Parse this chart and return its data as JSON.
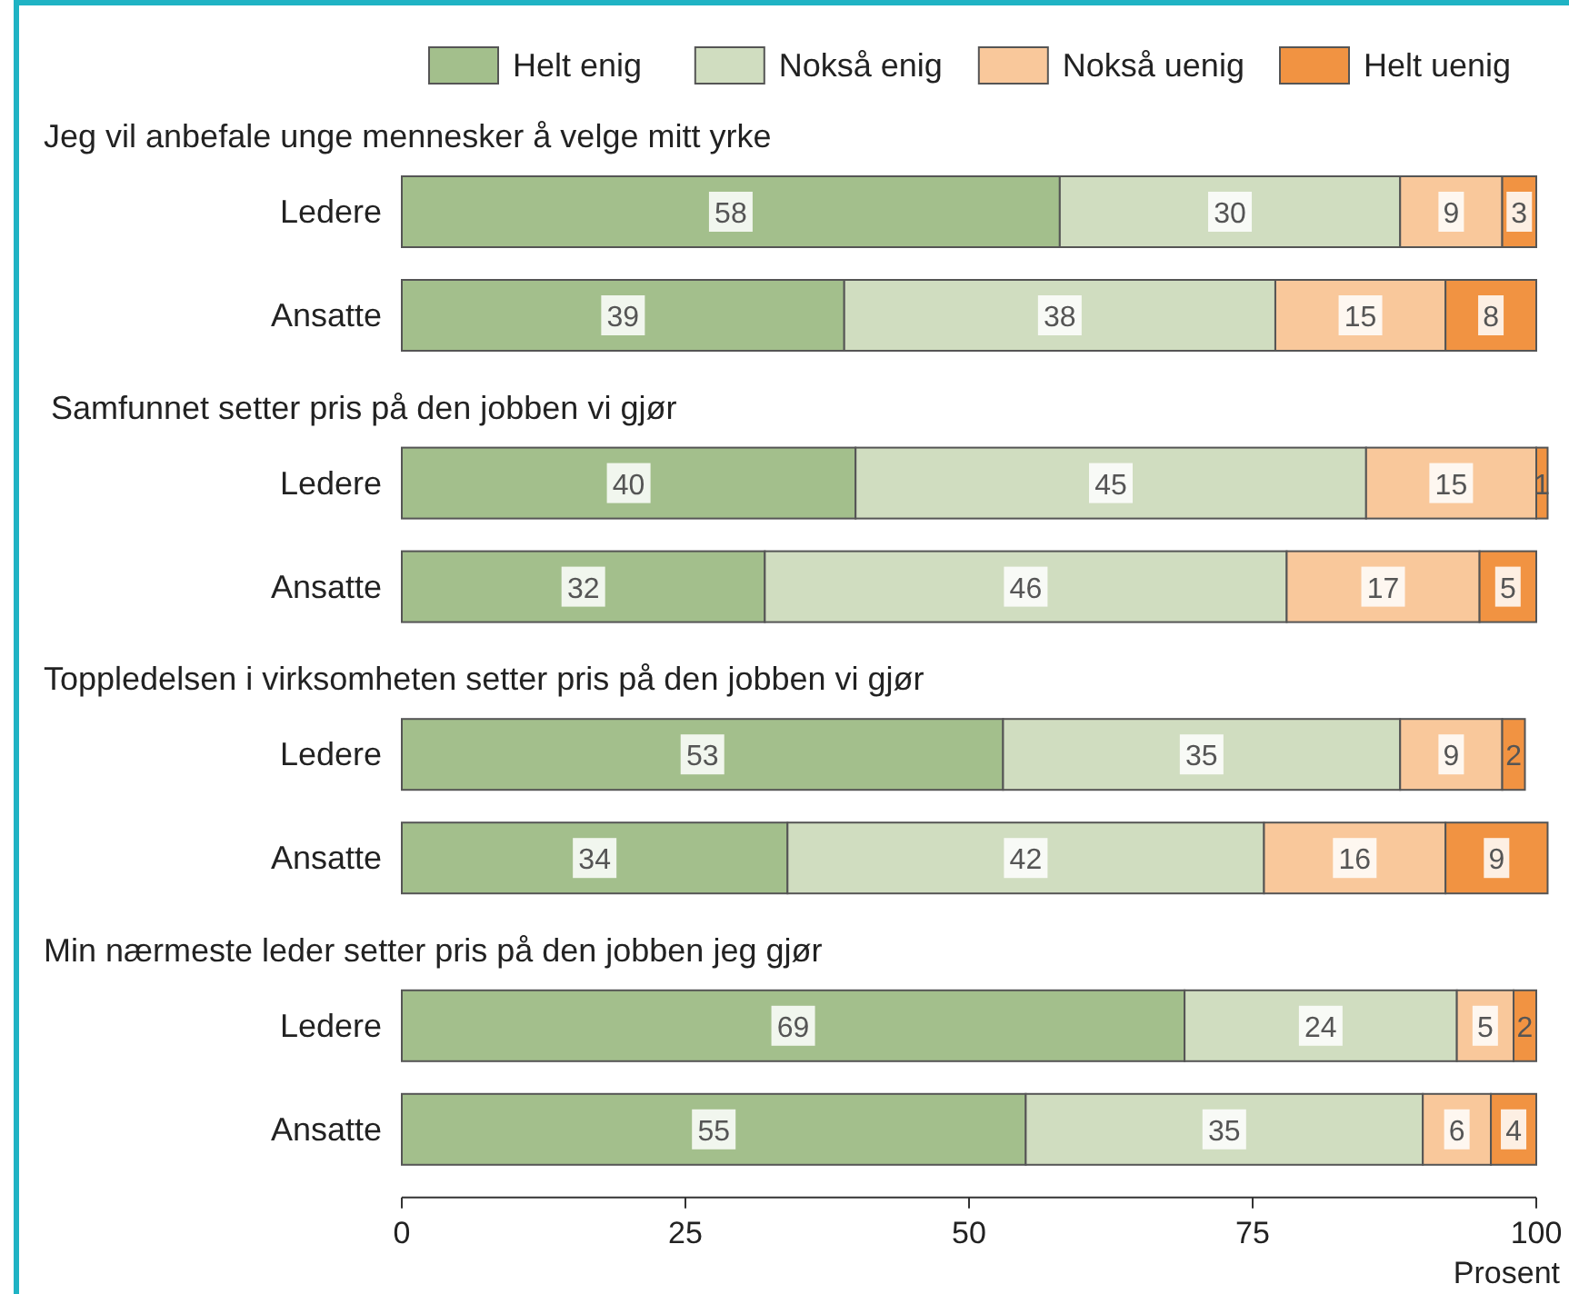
{
  "chart_data": [
    {
      "type": "bar",
      "orientation": "horizontal",
      "stacked": true,
      "title": "Jeg vil anbefale unge mennesker å velge mitt yrke",
      "categories": [
        "Ledere",
        "Ansatte"
      ],
      "tick_labels": "y",
      "data_labels": true,
      "legend": "top right",
      "series": [
        {
          "name": "Helt enig",
          "color": "#a3bf8c",
          "values": [
            58,
            39
          ]
        },
        {
          "name": "Nokså enig",
          "color": "#d0ddc0",
          "values": [
            30,
            38
          ]
        },
        {
          "name": "Nokså uenig",
          "color": "#f9c89b",
          "values": [
            9,
            15
          ]
        },
        {
          "name": "Helt uenig",
          "color": "#f19342",
          "values": [
            3,
            8
          ]
        }
      ]
    },
    {
      "type": "bar",
      "orientation": "horizontal",
      "stacked": true,
      "title": "Samfunnet setter pris på den jobben vi gjør",
      "categories": [
        "Ledere",
        "Ansatte"
      ],
      "tick_labels": "y",
      "data_labels": true,
      "series": [
        {
          "color": "#a3bf8c",
          "values": [
            40,
            32
          ]
        },
        {
          "color": "#d0ddc0",
          "values": [
            45,
            46
          ]
        },
        {
          "color": "#f9c89b",
          "values": [
            15,
            17
          ]
        },
        {
          "color": "#f19342",
          "values": [
            1,
            5
          ]
        }
      ]
    },
    {
      "type": "bar",
      "orientation": "horizontal",
      "stacked": true,
      "title": "Toppledelsen i virksomheten setter pris på den jobben vi gjør",
      "categories": [
        "Ledere",
        "Ansatte"
      ],
      "tick_labels": "y",
      "data_labels": true,
      "series": [
        {
          "color": "#a3bf8c",
          "values": [
            53,
            34
          ]
        },
        {
          "color": "#d0ddc0",
          "values": [
            35,
            42
          ]
        },
        {
          "color": "#f9c89b",
          "values": [
            9,
            16
          ]
        },
        {
          "color": "#f19342",
          "values": [
            2,
            9
          ]
        }
      ]
    },
    {
      "type": "bar",
      "orientation": "horizontal",
      "stacked": true,
      "title": "Min nærmeste leder setter pris på den jobben jeg gjør",
      "categories": [
        "Ledere",
        "Ansatte"
      ],
      "xlim": [
        0,
        100
      ],
      "xticks": [
        0,
        25,
        50,
        75,
        100
      ],
      "xlabel": "Prosent",
      "data_labels": true,
      "series": [
        {
          "color": "#a3bf8c",
          "values": [
            69,
            55
          ]
        },
        {
          "color": "#d0ddc0",
          "values": [
            24,
            35
          ]
        },
        {
          "color": "#f9c89b",
          "values": [
            5,
            6
          ]
        },
        {
          "color": "#f19342",
          "values": [
            2,
            4
          ]
        }
      ]
    }
  ]
}
